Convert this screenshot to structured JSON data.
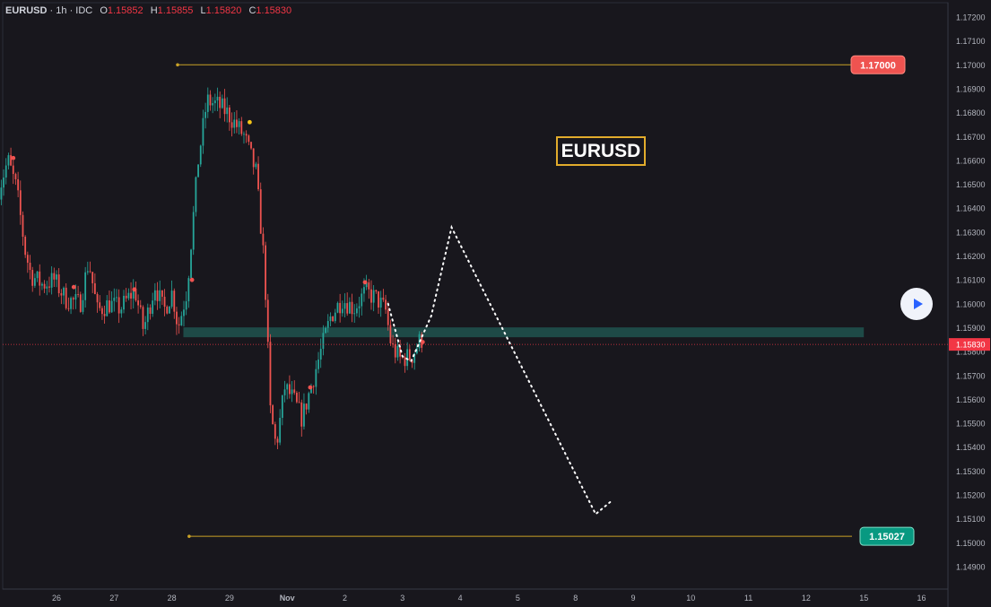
{
  "header": {
    "symbol": "EURUSD",
    "interval": "1h",
    "source": "IDC",
    "open_label": "O",
    "open": "1.15852",
    "high_label": "H",
    "high": "1.15855",
    "low_label": "L",
    "low": "1.15820",
    "close_label": "C",
    "close": "1.15830"
  },
  "annotation_title": "EURUSD",
  "colors": {
    "background": "#18171d",
    "up": "#26a69a",
    "down": "#ef5350",
    "level_line": "#c9a227",
    "zone": "#1e4a47",
    "price_label_red": "#ef5350",
    "price_label_green": "#089981",
    "current_price": "#f23645",
    "play_button": "#2962ff"
  },
  "chart_data": {
    "type": "candlestick",
    "y_axis": {
      "min": 1.149,
      "max": 1.172,
      "ticks": [
        "1.17200",
        "1.17100",
        "1.17000",
        "1.16900",
        "1.16800",
        "1.16700",
        "1.16600",
        "1.16500",
        "1.16400",
        "1.16300",
        "1.16200",
        "1.16100",
        "1.16000",
        "1.15900",
        "1.15800",
        "1.15700",
        "1.15600",
        "1.15500",
        "1.15400",
        "1.15300",
        "1.15200",
        "1.15100",
        "1.15000",
        "1.14900"
      ]
    },
    "x_axis": {
      "ticks": [
        {
          "label": "26",
          "day": 26
        },
        {
          "label": "27",
          "day": 27
        },
        {
          "label": "28",
          "day": 28
        },
        {
          "label": "29",
          "day": 29
        },
        {
          "label": "Nov",
          "day": 30
        },
        {
          "label": "2",
          "day": 31
        },
        {
          "label": "3",
          "day": 32
        },
        {
          "label": "4",
          "day": 33
        },
        {
          "label": "5",
          "day": 34
        },
        {
          "label": "8",
          "day": 35
        },
        {
          "label": "9",
          "day": 36
        },
        {
          "label": "10",
          "day": 37
        },
        {
          "label": "11",
          "day": 38
        },
        {
          "label": "12",
          "day": 39
        },
        {
          "label": "15",
          "day": 40
        },
        {
          "label": "16",
          "day": 41
        }
      ]
    },
    "price_path": [
      [
        25.0,
        1.1645
      ],
      [
        25.2,
        1.166
      ],
      [
        25.35,
        1.1648
      ],
      [
        25.5,
        1.1622
      ],
      [
        25.6,
        1.1612
      ],
      [
        25.8,
        1.1608
      ],
      [
        26.0,
        1.161
      ],
      [
        26.2,
        1.1602
      ],
      [
        26.45,
        1.16
      ],
      [
        26.6,
        1.1618
      ],
      [
        26.75,
        1.1597
      ],
      [
        26.95,
        1.16
      ],
      [
        27.15,
        1.1598
      ],
      [
        27.4,
        1.1606
      ],
      [
        27.55,
        1.1589
      ],
      [
        27.75,
        1.1608
      ],
      [
        27.9,
        1.1597
      ],
      [
        28.05,
        1.1605
      ],
      [
        28.15,
        1.159
      ],
      [
        28.3,
        1.1605
      ],
      [
        28.5,
        1.166
      ],
      [
        28.65,
        1.1685
      ],
      [
        28.85,
        1.1683
      ],
      [
        29.0,
        1.168
      ],
      [
        29.3,
        1.167
      ],
      [
        29.5,
        1.1655
      ],
      [
        29.65,
        1.1615
      ],
      [
        29.75,
        1.1555
      ],
      [
        29.85,
        1.154
      ],
      [
        30.0,
        1.1565
      ],
      [
        30.15,
        1.156
      ],
      [
        30.3,
        1.1552
      ],
      [
        30.45,
        1.1565
      ],
      [
        30.6,
        1.1578
      ],
      [
        30.8,
        1.1595
      ],
      [
        31.0,
        1.1602
      ],
      [
        31.2,
        1.1598
      ],
      [
        31.4,
        1.1605
      ],
      [
        31.6,
        1.1602
      ],
      [
        31.75,
        1.1597
      ],
      [
        31.85,
        1.1582
      ],
      [
        32.0,
        1.1577
      ],
      [
        32.2,
        1.1578
      ],
      [
        32.35,
        1.1585
      ]
    ],
    "highlight_dots": [
      {
        "day": 25.25,
        "price": 1.1661
      },
      {
        "day": 26.3,
        "price": 1.1607
      },
      {
        "day": 27.35,
        "price": 1.1606
      },
      {
        "day": 28.35,
        "price": 1.161
      },
      {
        "day": 29.35,
        "price": 1.1676
      },
      {
        "day": 30.4,
        "price": 1.1565
      },
      {
        "day": 31.35,
        "price": 1.1609
      },
      {
        "day": 32.35,
        "price": 1.1584
      }
    ],
    "levels": [
      {
        "name": "resistance",
        "price": 1.17,
        "label": "1.17000",
        "start_day": 28.1
      },
      {
        "name": "target",
        "price": 1.15027,
        "label": "1.15027",
        "start_day": 28.3
      }
    ],
    "zone": {
      "price_low": 1.1586,
      "price_high": 1.1589,
      "start_day": 28.2,
      "end_day": 40.0
    },
    "current_price": {
      "price": 1.1583,
      "label": "1.15830"
    },
    "projection": [
      [
        31.75,
        1.16
      ],
      [
        32.0,
        1.1578
      ],
      [
        32.15,
        1.1576
      ],
      [
        32.5,
        1.1595
      ],
      [
        32.85,
        1.1632
      ],
      [
        35.35,
        1.1512
      ],
      [
        35.6,
        1.1517
      ]
    ]
  }
}
